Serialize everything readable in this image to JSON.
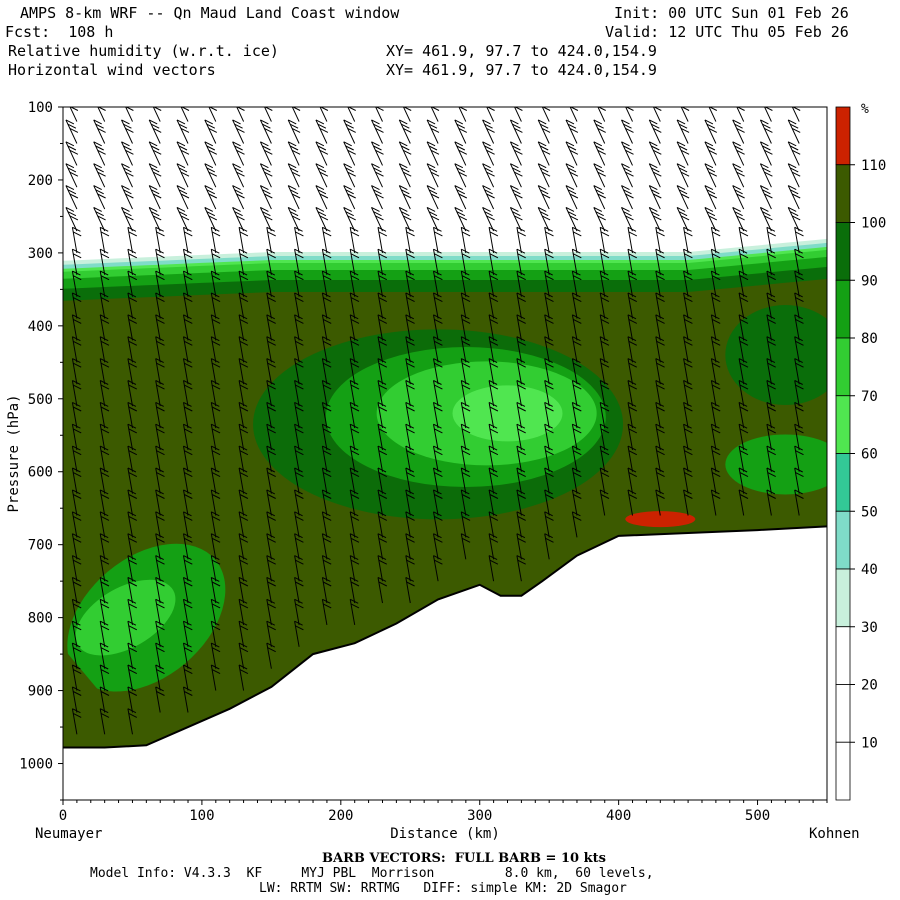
{
  "header": {
    "model_window": "AMPS 8-km WRF -- Qn Maud Land Coast window",
    "forecast": "Fcst:  108 h",
    "field1": "Relative humidity (w.r.t. ice)",
    "field2": "Horizontal wind vectors",
    "init": "Init: 00 UTC Sun 01 Feb 26",
    "valid": "Valid: 12 UTC Thu 05 Feb 26",
    "xy1": "XY= 461.9, 97.7 to 424.0,154.9",
    "xy2": "XY= 461.9, 97.7 to 424.0,154.9"
  },
  "footer": {
    "barb_note": "BARB VECTORS:  FULL BARB = 10 kts",
    "model_info": "Model Info: V4.3.3  KF     MYJ PBL  Morrison         8.0 km,  60 levels,",
    "physics": "LW: RRTM SW: RRTMG   DIFF: simple KM: 2D Smagor"
  },
  "chart_data": {
    "type": "heatmap",
    "title": "Relative humidity (w.r.t. ice)",
    "xlabel": "Distance (km)",
    "ylabel": "Pressure (hPa)",
    "x_left_label": "Neumayer",
    "x_right_label": "Kohnen",
    "xlim": [
      0,
      550
    ],
    "ylim": [
      1050,
      100
    ],
    "x_ticks": [
      0,
      100,
      200,
      300,
      400,
      500
    ],
    "y_ticks": [
      100,
      200,
      300,
      400,
      500,
      600,
      700,
      800,
      900,
      1000
    ],
    "colorbar": {
      "unit_label": "%",
      "levels": [
        10,
        20,
        30,
        40,
        50,
        60,
        70,
        80,
        90,
        100,
        110
      ],
      "colors": [
        "#ffffff",
        "#ffffff",
        "#ffffff",
        "#c8f0dc",
        "#7fdcc8",
        "#33c896",
        "#50e650",
        "#32cd32",
        "#14a014",
        "#0a6e0a",
        "#3c5a00",
        "#cc2200"
      ]
    },
    "terrain_surface_hPa": [
      {
        "x": 0,
        "p": 978
      },
      {
        "x": 30,
        "p": 978
      },
      {
        "x": 60,
        "p": 975
      },
      {
        "x": 90,
        "p": 950
      },
      {
        "x": 120,
        "p": 925
      },
      {
        "x": 150,
        "p": 895
      },
      {
        "x": 180,
        "p": 850
      },
      {
        "x": 210,
        "p": 835
      },
      {
        "x": 240,
        "p": 808
      },
      {
        "x": 270,
        "p": 775
      },
      {
        "x": 300,
        "p": 755
      },
      {
        "x": 315,
        "p": 770
      },
      {
        "x": 330,
        "p": 770
      },
      {
        "x": 345,
        "p": 750
      },
      {
        "x": 370,
        "p": 715
      },
      {
        "x": 400,
        "p": 688
      },
      {
        "x": 450,
        "p": 684
      },
      {
        "x": 500,
        "p": 680
      },
      {
        "x": 550,
        "p": 675
      }
    ],
    "moist_layer": {
      "top_hPa_at_x": [
        {
          "x": 0,
          "p": 330
        },
        {
          "x": 150,
          "p": 318
        },
        {
          "x": 300,
          "p": 318
        },
        {
          "x": 450,
          "p": 318
        },
        {
          "x": 550,
          "p": 300
        }
      ],
      "base_rh_percent": "100-110"
    },
    "features": [
      {
        "name": "mid-level drier core",
        "x_center": 300,
        "p_center": 525,
        "rh_percent": "70-80"
      },
      {
        "name": "low-level drier band",
        "x_center": 60,
        "p_center": 800,
        "rh_percent": "70-80"
      },
      {
        "name": "saturation patch",
        "x_center": 430,
        "p_center": 665,
        "rh_percent": ">110"
      }
    ],
    "barb_note": "FULL BARB = 10 kts"
  }
}
